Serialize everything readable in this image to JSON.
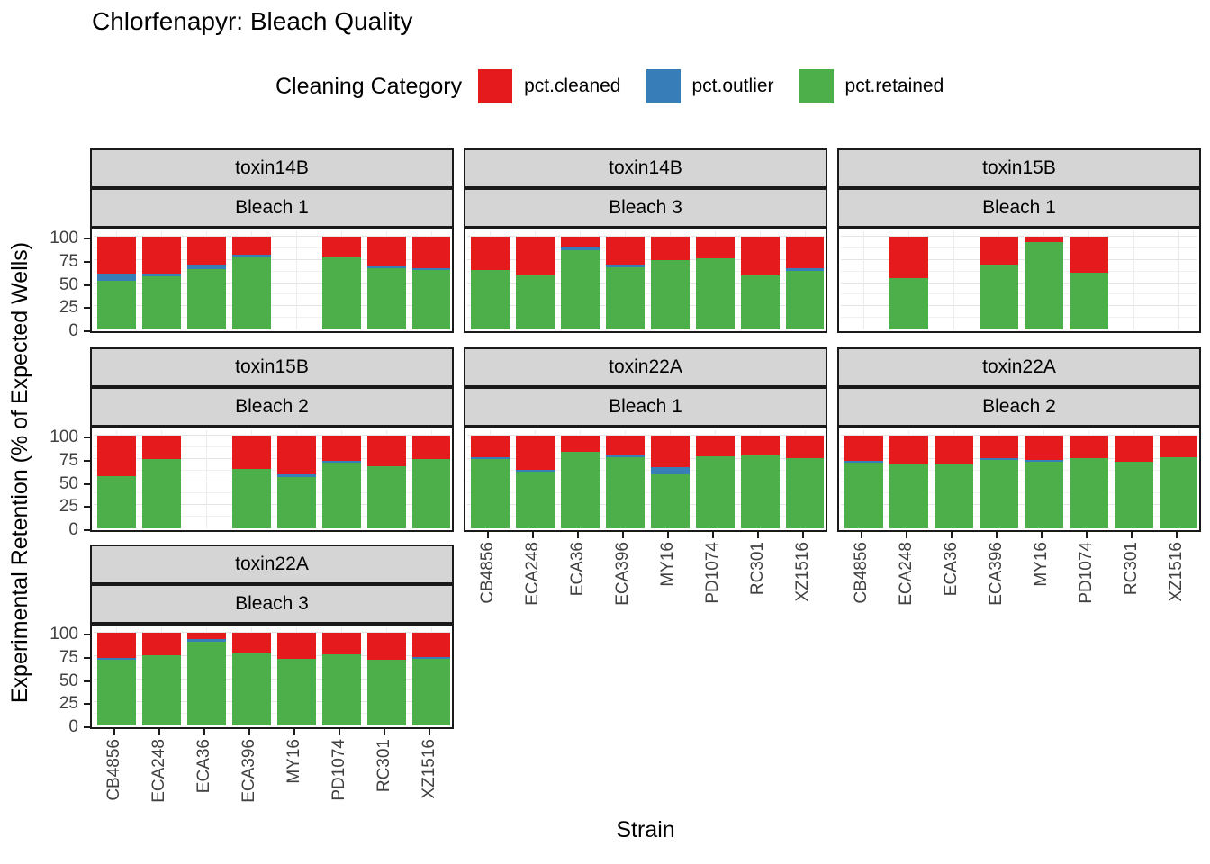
{
  "title": "Chlorfenapyr: Bleach Quality",
  "legend": {
    "title": "Cleaning Category",
    "items": [
      {
        "label": "pct.cleaned",
        "color": "#E41A1C"
      },
      {
        "label": "pct.outlier",
        "color": "#377EB8"
      },
      {
        "label": "pct.retained",
        "color": "#4DAF4A"
      }
    ]
  },
  "axes": {
    "y_label": "Experimental Retention (% of Expected Wells)",
    "x_label": "Strain",
    "y_ticks": [
      0,
      25,
      50,
      75,
      100
    ],
    "y_range": [
      0,
      100
    ]
  },
  "chart_data": {
    "type": "bar",
    "stacked": true,
    "grid": true,
    "legend_position": "top",
    "categories": [
      "CB4856",
      "ECA248",
      "ECA36",
      "ECA396",
      "MY16",
      "PD1074",
      "RC301",
      "XZ1516"
    ],
    "series_stack_order_bottom_to_top": [
      "pct.retained",
      "pct.outlier",
      "pct.cleaned"
    ],
    "colors": {
      "pct.cleaned": "#E41A1C",
      "pct.outlier": "#377EB8",
      "pct.retained": "#4DAF4A"
    },
    "facets": [
      {
        "toxin": "toxin14B",
        "bleach": "Bleach 1",
        "col": 0,
        "row": 0,
        "pct_retained": [
          52,
          57,
          65,
          79,
          null,
          78,
          66,
          64
        ],
        "pct_outlier": [
          8,
          3,
          5,
          2,
          null,
          0,
          2,
          2
        ],
        "pct_cleaned": [
          40,
          40,
          30,
          19,
          null,
          22,
          32,
          34
        ]
      },
      {
        "toxin": "toxin14B",
        "bleach": "Bleach 3",
        "col": 1,
        "row": 0,
        "pct_retained": [
          64,
          58,
          85,
          67,
          75,
          77,
          58,
          63
        ],
        "pct_outlier": [
          0,
          0,
          3,
          3,
          0,
          0,
          0,
          3
        ],
        "pct_cleaned": [
          36,
          42,
          12,
          30,
          25,
          23,
          42,
          34
        ]
      },
      {
        "toxin": "toxin15B",
        "bleach": "Bleach 1",
        "col": 2,
        "row": 0,
        "pct_retained": [
          null,
          55,
          null,
          70,
          94,
          61,
          null,
          null
        ],
        "pct_outlier": [
          null,
          0,
          null,
          0,
          0,
          0,
          null,
          null
        ],
        "pct_cleaned": [
          null,
          45,
          null,
          30,
          6,
          39,
          null,
          null
        ]
      },
      {
        "toxin": "toxin15B",
        "bleach": "Bleach 2",
        "col": 0,
        "row": 1,
        "pct_retained": [
          56,
          75,
          null,
          64,
          55,
          71,
          67,
          75
        ],
        "pct_outlier": [
          0,
          0,
          null,
          0,
          3,
          2,
          0,
          0
        ],
        "pct_cleaned": [
          44,
          25,
          null,
          36,
          42,
          27,
          33,
          25
        ]
      },
      {
        "toxin": "toxin22A",
        "bleach": "Bleach 1",
        "col": 1,
        "row": 1,
        "pct_retained": [
          75,
          61,
          83,
          77,
          58,
          78,
          79,
          76
        ],
        "pct_outlier": [
          2,
          2,
          0,
          2,
          8,
          0,
          0,
          0
        ],
        "pct_cleaned": [
          23,
          37,
          17,
          21,
          34,
          22,
          21,
          24
        ]
      },
      {
        "toxin": "toxin22A",
        "bleach": "Bleach 2",
        "col": 2,
        "row": 1,
        "pct_retained": [
          71,
          69,
          69,
          74,
          72,
          76,
          72,
          77
        ],
        "pct_outlier": [
          2,
          0,
          0,
          2,
          2,
          0,
          0,
          0
        ],
        "pct_cleaned": [
          27,
          31,
          31,
          24,
          26,
          24,
          28,
          23
        ]
      },
      {
        "toxin": "toxin22A",
        "bleach": "Bleach 3",
        "col": 0,
        "row": 2,
        "pct_retained": [
          71,
          76,
          90,
          78,
          72,
          77,
          71,
          72
        ],
        "pct_outlier": [
          2,
          0,
          3,
          0,
          0,
          0,
          0,
          2
        ],
        "pct_cleaned": [
          27,
          24,
          7,
          22,
          28,
          23,
          29,
          26
        ]
      }
    ]
  }
}
